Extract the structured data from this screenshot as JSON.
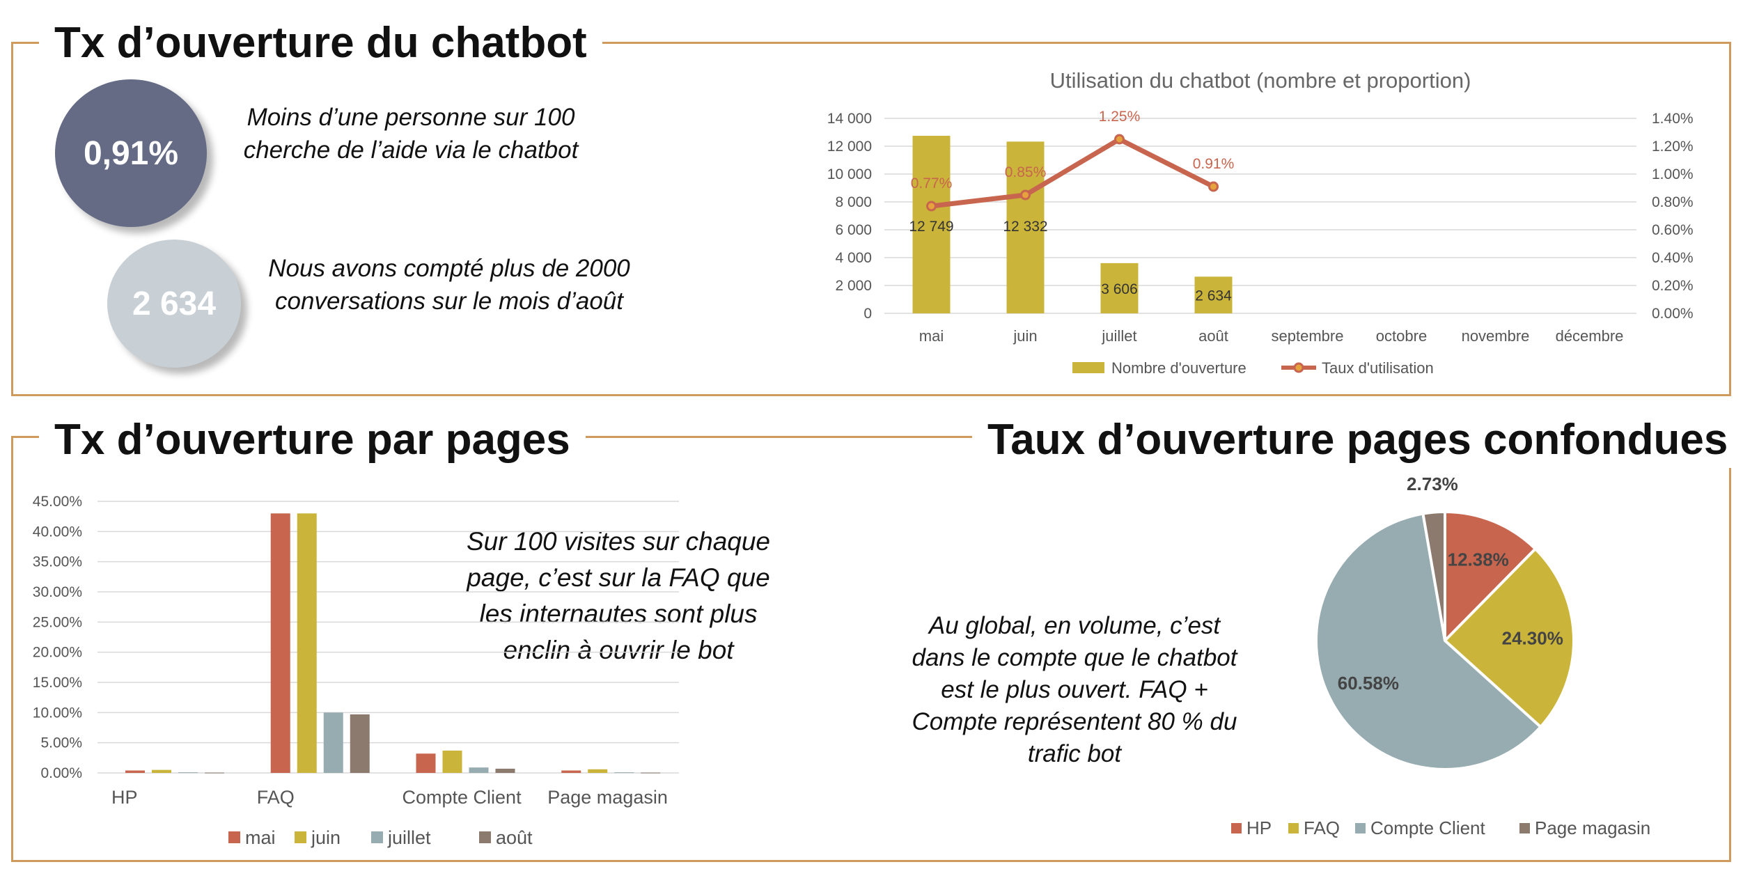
{
  "top_section": {
    "title": "Tx d’ouverture du chatbot",
    "kpi1": {
      "value": "0,91%",
      "color": "#656a85",
      "text": "Moins d’une personne sur 100 cherche de l’aide via le chatbot"
    },
    "kpi2": {
      "value": "2 634",
      "color": "#c8d0d6",
      "text": "Nous avons compté plus de 2000 conversations sur le mois d’août"
    }
  },
  "bottom_left": {
    "title": "Tx d’ouverture par pages",
    "note": "Sur 100 visites sur chaque page, c’est sur la FAQ que les internautes sont plus enclin à ouvrir le bot"
  },
  "bottom_right": {
    "title": "Taux d’ouverture pages confondues",
    "note": "Au global, en volume, c’est dans le compte que le chatbot est le plus ouvert. FAQ + Compte représentent 80 % du trafic bot"
  },
  "colors": {
    "frame": "#cf9a5e",
    "mai": "#c8654e",
    "juin": "#cbb43a",
    "juillet": "#97acb0",
    "aout": "#8c7a6e"
  },
  "chart_data": [
    {
      "type": "bar+line",
      "title": "Utilisation du chatbot (nombre et proportion)",
      "categories": [
        "mai",
        "juin",
        "juillet",
        "août",
        "septembre",
        "octobre",
        "novembre",
        "décembre"
      ],
      "series": [
        {
          "name": "Nombre d'ouverture",
          "type": "bar",
          "axis": "left",
          "color": "#cbb43a",
          "values": [
            12749,
            12332,
            3606,
            2634,
            null,
            null,
            null,
            null
          ],
          "labels": [
            "12 749",
            "12 332",
            "3 606",
            "2 634",
            "",
            "",
            "",
            ""
          ]
        },
        {
          "name": "Taux d'utilisation",
          "type": "line",
          "axis": "right",
          "color": "#c8654e",
          "values": [
            0.77,
            0.85,
            1.25,
            0.91,
            null,
            null,
            null,
            null
          ],
          "labels": [
            "0.77%",
            "0.85%",
            "1.25%",
            "0.91%",
            "",
            "",
            "",
            ""
          ]
        }
      ],
      "ylim_left": [
        0,
        14000
      ],
      "yticks_left": [
        "0",
        "2 000",
        "4 000",
        "6 000",
        "8 000",
        "10 000",
        "12 000",
        "14 000"
      ],
      "ylim_right": [
        0,
        1.4
      ],
      "yticks_right": [
        "0.00%",
        "0.20%",
        "0.40%",
        "0.60%",
        "0.80%",
        "1.00%",
        "1.20%",
        "1.40%"
      ],
      "grid": true,
      "legend": "bottom"
    },
    {
      "type": "bar",
      "categories": [
        "HP",
        "FAQ",
        "Compte Client",
        "Page magasin"
      ],
      "series": [
        {
          "name": "mai",
          "color": "#c8654e",
          "values": [
            0.4,
            43.0,
            3.2,
            0.4
          ]
        },
        {
          "name": "juin",
          "color": "#cbb43a",
          "values": [
            0.5,
            43.0,
            3.7,
            0.6
          ]
        },
        {
          "name": "juillet",
          "color": "#97acb0",
          "values": [
            0.1,
            10.0,
            0.9,
            0.1
          ]
        },
        {
          "name": "août",
          "color": "#8c7a6e",
          "values": [
            0.05,
            9.7,
            0.7,
            0.05
          ]
        }
      ],
      "ylim": [
        0,
        45
      ],
      "yticks": [
        "0.00%",
        "5.00%",
        "10.00%",
        "15.00%",
        "20.00%",
        "25.00%",
        "30.00%",
        "35.00%",
        "40.00%",
        "45.00%"
      ],
      "grid": true,
      "legend": "bottom"
    },
    {
      "type": "pie",
      "slices": [
        {
          "name": "HP",
          "value": 12.38,
          "label": "12.38%",
          "color": "#c8654e"
        },
        {
          "name": "FAQ",
          "value": 24.3,
          "label": "24.30%",
          "color": "#cbb43a"
        },
        {
          "name": "Compte Client",
          "value": 60.58,
          "label": "60.58%",
          "color": "#97acb0"
        },
        {
          "name": "Page magasin",
          "value": 2.73,
          "label": "2.73%",
          "color": "#8c7a6e"
        }
      ],
      "legend": "bottom"
    }
  ]
}
